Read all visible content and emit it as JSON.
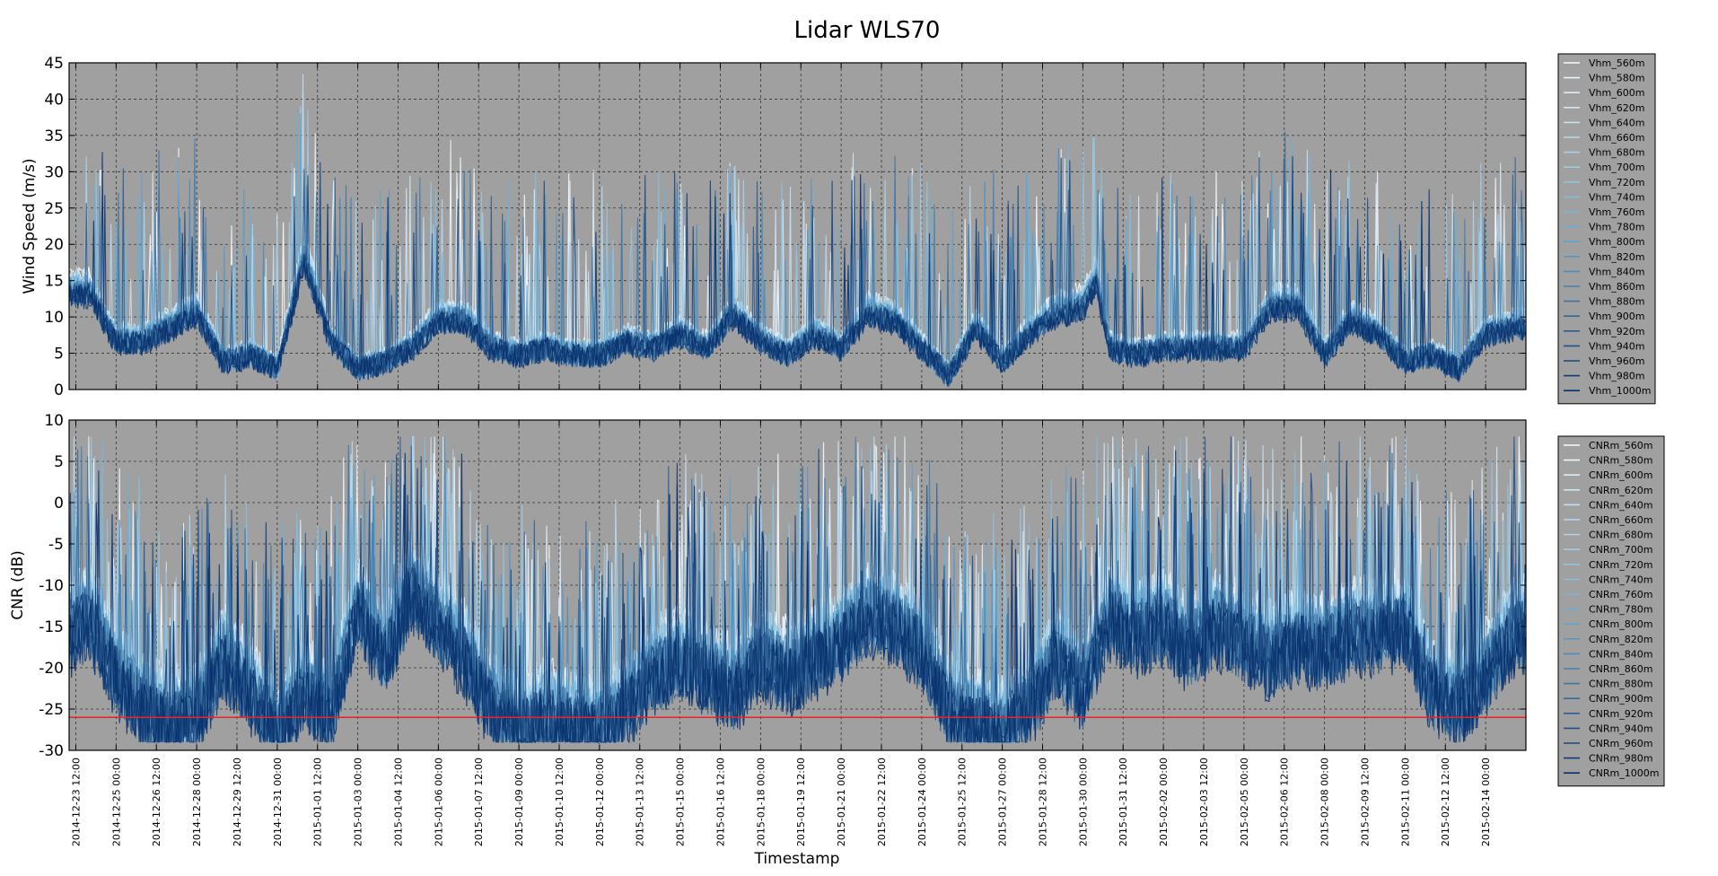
{
  "title": "Lidar WLS70",
  "colors": {
    "plot_bg": "#a0a0a0",
    "threshold": "#e8242a"
  },
  "chart_data": [
    {
      "type": "line",
      "ylabel": "Wind Speed (m/s)",
      "ylim": [
        0,
        45
      ],
      "yticks": [
        0,
        5,
        10,
        15,
        20,
        25,
        30,
        35,
        40,
        45
      ],
      "grid": true,
      "legend": "outside-right",
      "series_prefix": "Vhm_",
      "series": [
        {
          "name": "Vhm_560m"
        },
        {
          "name": "Vhm_580m"
        },
        {
          "name": "Vhm_600m"
        },
        {
          "name": "Vhm_620m"
        },
        {
          "name": "Vhm_640m"
        },
        {
          "name": "Vhm_660m"
        },
        {
          "name": "Vhm_680m"
        },
        {
          "name": "Vhm_700m"
        },
        {
          "name": "Vhm_720m"
        },
        {
          "name": "Vhm_740m"
        },
        {
          "name": "Vhm_760m"
        },
        {
          "name": "Vhm_780m"
        },
        {
          "name": "Vhm_800m"
        },
        {
          "name": "Vhm_820m"
        },
        {
          "name": "Vhm_840m"
        },
        {
          "name": "Vhm_860m"
        },
        {
          "name": "Vhm_880m"
        },
        {
          "name": "Vhm_900m"
        },
        {
          "name": "Vhm_920m"
        },
        {
          "name": "Vhm_940m"
        },
        {
          "name": "Vhm_960m"
        },
        {
          "name": "Vhm_980m"
        },
        {
          "name": "Vhm_1000m"
        }
      ],
      "profile": {
        "x": [
          "2014-12-23 06:00",
          "2014-12-24 00:00",
          "2014-12-25 00:00",
          "2014-12-26 00:00",
          "2014-12-27 00:00",
          "2014-12-28 00:00",
          "2014-12-29 00:00",
          "2014-12-30 00:00",
          "2014-12-31 00:00",
          "2015-01-01 00:00",
          "2015-01-02 00:00",
          "2015-01-03 00:00",
          "2015-01-04 00:00",
          "2015-01-05 00:00",
          "2015-01-06 00:00",
          "2015-01-07 00:00",
          "2015-01-08 00:00",
          "2015-01-09 00:00",
          "2015-01-10 00:00",
          "2015-01-11 00:00",
          "2015-01-12 00:00",
          "2015-01-13 00:00",
          "2015-01-14 00:00",
          "2015-01-15 00:00",
          "2015-01-16 00:00",
          "2015-01-17 00:00",
          "2015-01-18 00:00",
          "2015-01-19 00:00",
          "2015-01-20 00:00",
          "2015-01-21 00:00",
          "2015-01-22 00:00",
          "2015-01-23 00:00",
          "2015-01-24 00:00",
          "2015-01-25 00:00",
          "2015-01-26 00:00",
          "2015-01-27 00:00",
          "2015-01-28 00:00",
          "2015-01-29 00:00",
          "2015-01-30 00:00",
          "2015-01-30 12:00",
          "2015-01-31 00:00",
          "2015-02-01 00:00",
          "2015-02-02 00:00",
          "2015-02-03 00:00",
          "2015-02-04 00:00",
          "2015-02-05 00:00",
          "2015-02-06 00:00",
          "2015-02-07 00:00",
          "2015-02-08 00:00",
          "2015-02-09 00:00",
          "2015-02-10 00:00",
          "2015-02-11 00:00",
          "2015-02-12 00:00",
          "2015-02-13 00:00",
          "2015-02-14 00:00",
          "2015-02-15 00:00"
        ],
        "y": [
          14,
          14,
          7,
          7,
          9,
          11,
          4,
          5,
          3,
          19,
          7,
          3,
          4,
          6,
          10,
          10,
          6,
          5,
          6,
          5,
          5,
          7,
          6,
          8,
          6,
          11,
          7,
          5,
          8,
          6,
          11,
          10,
          6,
          2,
          9,
          4,
          8,
          11,
          12,
          16,
          6,
          5,
          6,
          6,
          6,
          6,
          12,
          12,
          5,
          10,
          8,
          4,
          5,
          3,
          8,
          9
        ]
      }
    },
    {
      "type": "line",
      "xlabel": "Timestamp",
      "ylabel": "CNR (dB)",
      "ylim": [
        -30,
        10
      ],
      "yticks": [
        -30,
        -25,
        -20,
        -15,
        -10,
        -5,
        0,
        5,
        10
      ],
      "grid": true,
      "legend": "outside-right",
      "threshold": -26,
      "series": [
        {
          "name": "CNRm_560m"
        },
        {
          "name": "CNRm_580m"
        },
        {
          "name": "CNRm_600m"
        },
        {
          "name": "CNRm_620m"
        },
        {
          "name": "CNRm_640m"
        },
        {
          "name": "CNRm_660m"
        },
        {
          "name": "CNRm_680m"
        },
        {
          "name": "CNRm_700m"
        },
        {
          "name": "CNRm_720m"
        },
        {
          "name": "CNRm_740m"
        },
        {
          "name": "CNRm_760m"
        },
        {
          "name": "CNRm_780m"
        },
        {
          "name": "CNRm_800m"
        },
        {
          "name": "CNRm_820m"
        },
        {
          "name": "CNRm_840m"
        },
        {
          "name": "CNRm_860m"
        },
        {
          "name": "CNRm_880m"
        },
        {
          "name": "CNRm_900m"
        },
        {
          "name": "CNRm_920m"
        },
        {
          "name": "CNRm_940m"
        },
        {
          "name": "CNRm_960m"
        },
        {
          "name": "CNRm_980m"
        },
        {
          "name": "CNRm_1000m"
        }
      ],
      "profile": {
        "x": [
          "2014-12-23 06:00",
          "2014-12-24 00:00",
          "2014-12-25 00:00",
          "2014-12-26 00:00",
          "2014-12-27 00:00",
          "2014-12-28 00:00",
          "2014-12-29 00:00",
          "2014-12-30 00:00",
          "2014-12-31 00:00",
          "2015-01-01 00:00",
          "2015-01-02 00:00",
          "2015-01-03 00:00",
          "2015-01-04 00:00",
          "2015-01-05 00:00",
          "2015-01-06 00:00",
          "2015-01-07 00:00",
          "2015-01-08 00:00",
          "2015-01-09 00:00",
          "2015-01-10 00:00",
          "2015-01-11 00:00",
          "2015-01-12 00:00",
          "2015-01-13 00:00",
          "2015-01-14 00:00",
          "2015-01-15 00:00",
          "2015-01-16 00:00",
          "2015-01-17 00:00",
          "2015-01-18 00:00",
          "2015-01-19 00:00",
          "2015-01-20 00:00",
          "2015-01-21 00:00",
          "2015-01-22 00:00",
          "2015-01-23 00:00",
          "2015-01-24 00:00",
          "2015-01-25 00:00",
          "2015-01-26 00:00",
          "2015-01-27 00:00",
          "2015-01-28 00:00",
          "2015-01-29 00:00",
          "2015-01-30 00:00",
          "2015-01-31 00:00",
          "2015-02-01 00:00",
          "2015-02-02 00:00",
          "2015-02-03 00:00",
          "2015-02-04 00:00",
          "2015-02-05 00:00",
          "2015-02-06 00:00",
          "2015-02-07 00:00",
          "2015-02-08 00:00",
          "2015-02-09 00:00",
          "2015-02-10 00:00",
          "2015-02-11 00:00",
          "2015-02-12 00:00",
          "2015-02-13 00:00",
          "2015-02-14 00:00",
          "2015-02-15 00:00"
        ],
        "y": [
          -15,
          -13,
          -20,
          -24,
          -26,
          -25,
          -18,
          -22,
          -27,
          -22,
          -25,
          -12,
          -18,
          -10,
          -14,
          -18,
          -24,
          -26,
          -25,
          -26,
          -27,
          -24,
          -20,
          -18,
          -20,
          -22,
          -18,
          -20,
          -18,
          -16,
          -13,
          -14,
          -17,
          -24,
          -26,
          -27,
          -24,
          -18,
          -22,
          -13,
          -15,
          -14,
          -17,
          -14,
          -16,
          -18,
          -16,
          -17,
          -15,
          -15,
          -14,
          -22,
          -24,
          -20,
          -15
        ]
      }
    }
  ],
  "xaxis": {
    "range": [
      "2014-12-23 06:00",
      "2015-02-15 12:00"
    ],
    "ticks": [
      "2014-12-23 12:00",
      "2014-12-25 00:00",
      "2014-12-26 12:00",
      "2014-12-28 00:00",
      "2014-12-29 12:00",
      "2014-12-31 00:00",
      "2015-01-01 12:00",
      "2015-01-03 00:00",
      "2015-01-04 12:00",
      "2015-01-06 00:00",
      "2015-01-07 12:00",
      "2015-01-09 00:00",
      "2015-01-10 12:00",
      "2015-01-12 00:00",
      "2015-01-13 12:00",
      "2015-01-15 00:00",
      "2015-01-16 12:00",
      "2015-01-18 00:00",
      "2015-01-19 12:00",
      "2015-01-21 00:00",
      "2015-01-22 12:00",
      "2015-01-24 00:00",
      "2015-01-25 12:00",
      "2015-01-27 00:00",
      "2015-01-28 12:00",
      "2015-01-30 00:00",
      "2015-01-31 12:00",
      "2015-02-02 00:00",
      "2015-02-03 12:00",
      "2015-02-05 00:00",
      "2015-02-06 12:00",
      "2015-02-08 00:00",
      "2015-02-09 12:00",
      "2015-02-11 00:00",
      "2015-02-12 12:00",
      "2015-02-14 00:00"
    ]
  }
}
